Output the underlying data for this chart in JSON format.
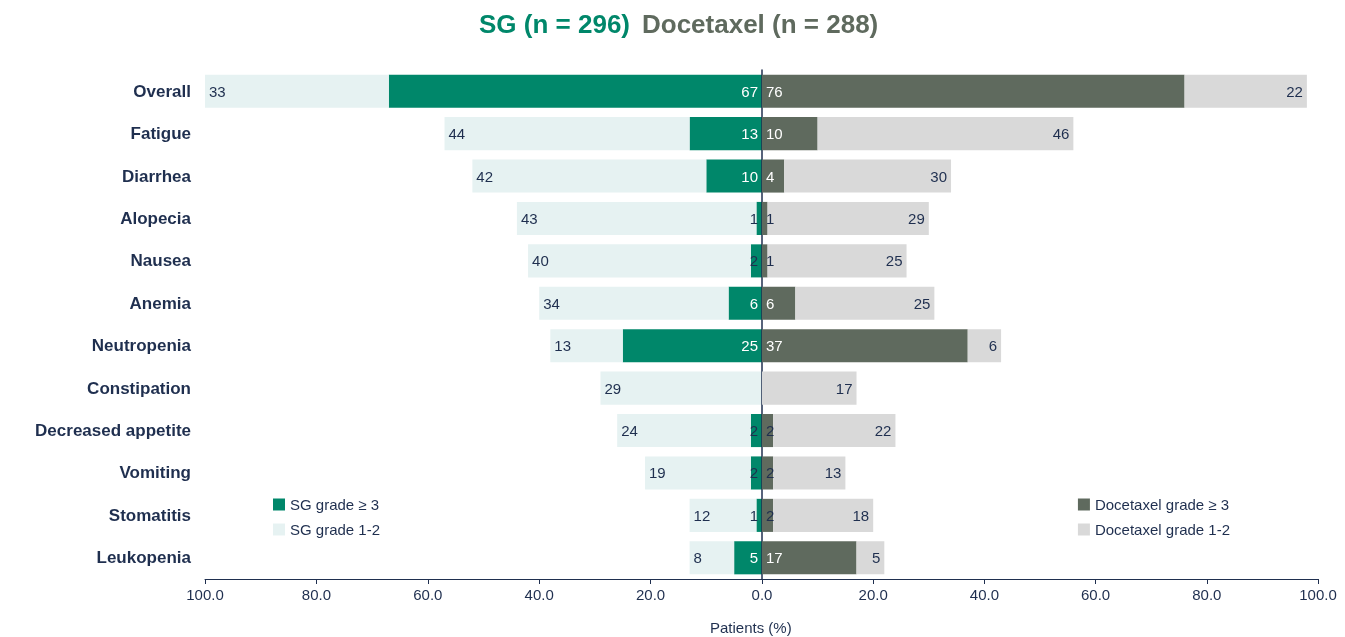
{
  "chart_data": [
    {
      "type": "bar",
      "orientation": "horizontal",
      "stacked": true,
      "title": "SG (n = 296)",
      "categories": [
        "Overall",
        "Fatigue",
        "Diarrhea",
        "Alopecia",
        "Nausea",
        "Anemia",
        "Neutropenia",
        "Constipation",
        "Decreased appetite",
        "Vomiting",
        "Stomatitis",
        "Leukopenia"
      ],
      "series": [
        {
          "name": "SG grade ≥ 3",
          "color": "#00876a",
          "values": [
            67,
            13,
            10,
            1,
            2,
            6,
            25,
            null,
            2,
            2,
            1,
            5
          ]
        },
        {
          "name": "SG grade 1-2",
          "color": "#e6f2f2",
          "values": [
            33,
            44,
            42,
            43,
            40,
            34,
            13,
            29,
            24,
            19,
            12,
            8
          ]
        }
      ],
      "xlim": [
        100,
        0
      ],
      "xticks": [
        {
          "value": 100,
          "label": "100.0"
        },
        {
          "value": 80,
          "label": "80.0"
        },
        {
          "value": 60,
          "label": "60.0"
        },
        {
          "value": 40,
          "label": "40.0"
        },
        {
          "value": 20,
          "label": "20.0"
        },
        {
          "value": 0,
          "label": "0.0"
        }
      ],
      "data_labels": true,
      "legend": "bottom left"
    },
    {
      "type": "bar",
      "orientation": "horizontal",
      "stacked": true,
      "title": "Docetaxel (n = 288)",
      "xlabel": "Patients (%)",
      "categories": [
        null,
        null,
        null,
        null,
        null,
        null,
        null,
        null,
        null,
        null,
        null,
        null
      ],
      "series": [
        {
          "name": "Docetaxel grade ≥ 3",
          "color": "#5f6a5e",
          "values": [
            76,
            10,
            4,
            1,
            1,
            6,
            37,
            null,
            2,
            2,
            2,
            17
          ]
        },
        {
          "name": "Docetaxel grade 1-2",
          "color": "#d9d9d9",
          "values": [
            22,
            46,
            30,
            29,
            25,
            25,
            6,
            17,
            22,
            13,
            18,
            5
          ]
        }
      ],
      "xlim": [
        0,
        100
      ],
      "xticks": [
        {
          "value": 0,
          "label": null
        },
        {
          "value": 20,
          "label": "20.0"
        },
        {
          "value": 40,
          "label": "40.0"
        },
        {
          "value": 60,
          "label": "60.0"
        },
        {
          "value": 80,
          "label": "80.0"
        },
        {
          "value": 100,
          "label": "100.0"
        }
      ],
      "tick_labels": "x",
      "data_labels": true,
      "legend": "bottom right"
    }
  ]
}
